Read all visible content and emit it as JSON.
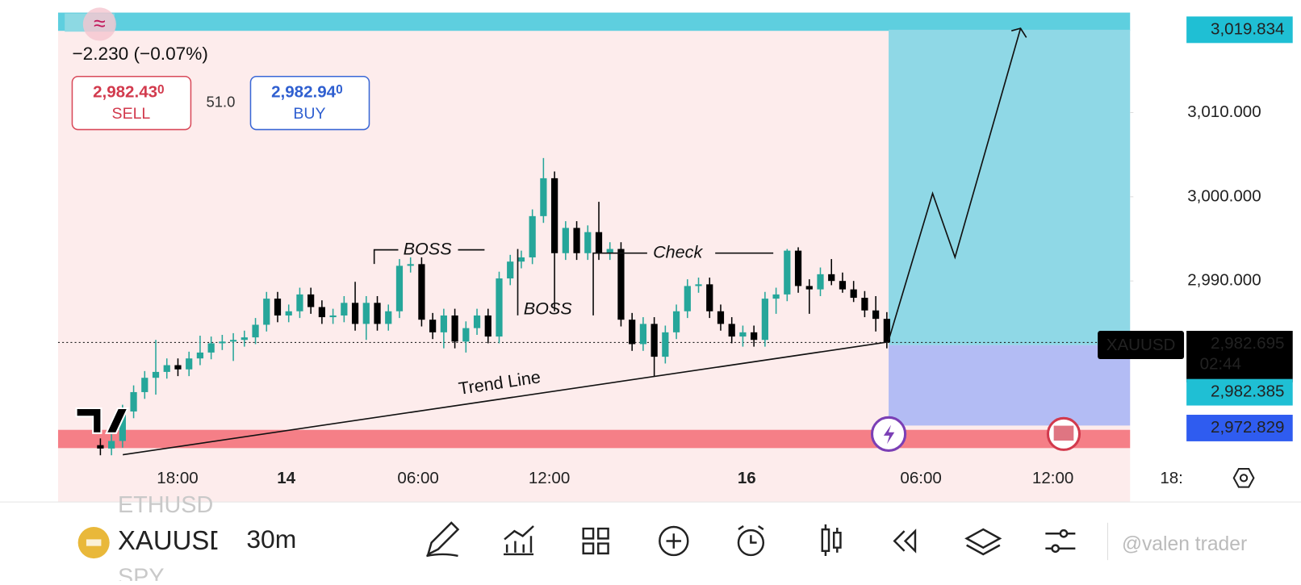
{
  "header": {
    "change": "−2.230 (−0.07%)",
    "sell_price": "2,982.43",
    "sell_pip": "0",
    "sell_label": "SELL",
    "spread": "51.0",
    "buy_price": "2,982.94",
    "buy_pip": "0",
    "buy_label": "BUY"
  },
  "chart_data": {
    "type": "candlestick",
    "symbol": "XAUUSD",
    "up_color": "#26a69a",
    "down_color": "#000000",
    "open": [
      2970.5,
      2970.1,
      2971.0,
      2974.5,
      2976.8,
      2978.5,
      2979.2,
      2980.0,
      2979.5,
      2980.8,
      2981.5,
      2982.6,
      2982.8,
      2983.0,
      2983.3,
      2984.8,
      2987.9,
      2985.9,
      2986.4,
      2988.4,
      2986.9,
      2985.7,
      2985.9,
      2987.4,
      2984.9,
      2987.4,
      2984.9,
      2986.4,
      2991.8,
      2992.0,
      2985.4,
      2983.9,
      2985.9,
      2982.8,
      2984.4,
      2985.9,
      2983.4,
      2990.3,
      2992.3,
      2992.8,
      2997.7,
      3002.2,
      2993.3,
      2996.3,
      2993.3,
      2995.8,
      2993.3,
      2993.8,
      2985.4,
      2982.5,
      2984.9,
      2981.0,
      2983.9,
      2986.4,
      2989.4,
      2989.6,
      2986.4,
      2984.9,
      2983.4,
      2983.9,
      2983.0,
      2987.9,
      2988.4,
      2993.6,
      2989.4,
      2989.0,
      2990.8,
      2990.0,
      2989.0,
      2988.0,
      2986.5,
      2985.5
    ],
    "high": [
      2971.3,
      2971.8,
      2975.3,
      2977.6,
      2979.3,
      2983.0,
      2980.8,
      2980.8,
      2981.6,
      2983.5,
      2983.4,
      2983.6,
      2983.8,
      2984.1,
      2985.6,
      2988.7,
      2988.7,
      2987.2,
      2989.2,
      2989.2,
      2987.7,
      2986.7,
      2988.2,
      2989.9,
      2988.2,
      2988.2,
      2987.2,
      2992.6,
      2992.8,
      2992.8,
      2986.2,
      2986.7,
      2986.7,
      2985.2,
      2986.7,
      2986.7,
      2991.1,
      2993.1,
      2993.6,
      2998.5,
      3004.6,
      3003.0,
      2997.1,
      2997.1,
      2996.6,
      2999.4,
      2994.6,
      2994.6,
      2986.2,
      2985.7,
      2985.7,
      2984.7,
      2987.2,
      2990.2,
      2990.4,
      2990.4,
      2987.2,
      2985.7,
      2984.7,
      2984.7,
      2988.7,
      2989.2,
      2993.8,
      2994.0,
      2990.2,
      2991.6,
      2992.6,
      2991.0,
      2990.0,
      2988.8,
      2988.2,
      2986.3
    ],
    "low": [
      2969.3,
      2969.3,
      2970.2,
      2973.7,
      2976.0,
      2976.5,
      2978.4,
      2978.7,
      2978.7,
      2980.0,
      2980.7,
      2981.8,
      2980.5,
      2982.2,
      2982.5,
      2984.0,
      2985.1,
      2985.1,
      2985.6,
      2986.1,
      2984.9,
      2984.9,
      2985.1,
      2984.1,
      2983.0,
      2984.1,
      2984.1,
      2985.6,
      2991.0,
      2984.6,
      2983.1,
      2982.0,
      2982.0,
      2981.5,
      2983.6,
      2982.6,
      2982.6,
      2989.5,
      2991.5,
      2992.0,
      2996.9,
      2986.4,
      2992.5,
      2992.5,
      2992.5,
      2992.5,
      2992.5,
      2984.6,
      2981.7,
      2981.7,
      2978.7,
      2980.2,
      2983.1,
      2985.6,
      2988.6,
      2985.6,
      2984.1,
      2982.6,
      2982.2,
      2982.2,
      2982.2,
      2986.1,
      2987.6,
      2988.6,
      2986.1,
      2988.2,
      2989.5,
      2988.6,
      2987.5,
      2985.7,
      2984.0,
      2982.0
    ],
    "close": [
      2970.1,
      2971.0,
      2974.5,
      2976.8,
      2978.5,
      2979.2,
      2980.0,
      2979.5,
      2980.8,
      2981.5,
      2982.6,
      2982.8,
      2983.0,
      2983.3,
      2984.8,
      2987.9,
      2985.9,
      2986.4,
      2988.4,
      2986.9,
      2985.7,
      2985.9,
      2987.4,
      2984.9,
      2987.4,
      2984.9,
      2986.4,
      2991.8,
      2992.0,
      2985.4,
      2983.9,
      2985.9,
      2982.8,
      2984.4,
      2985.9,
      2983.4,
      2990.3,
      2992.3,
      2992.8,
      2997.7,
      3002.2,
      2993.3,
      2996.3,
      2993.3,
      2995.8,
      2993.3,
      2993.8,
      2985.4,
      2982.5,
      2984.9,
      2981.0,
      2983.9,
      2986.4,
      2989.4,
      2989.6,
      2986.4,
      2984.9,
      2983.4,
      2983.9,
      2983.0,
      2987.9,
      2988.4,
      2993.6,
      2989.4,
      2989.0,
      2990.8,
      2990.0,
      2989.0,
      2988.0,
      2986.5,
      2985.5,
      2982.7
    ],
    "ylim": [
      2964.24,
      3023.35
    ],
    "yticks": [
      {
        "value": 3010,
        "label": "3,010.000"
      },
      {
        "value": 3000,
        "label": "3,000.000"
      },
      {
        "value": 2990,
        "label": "2,990.000"
      }
    ],
    "xlabels": [
      "18:00",
      "14",
      "06:00",
      "12:00",
      "16",
      "06:00",
      "12:00",
      "18:"
    ],
    "last_price": {
      "value": 2982.695,
      "label": "2,982.695"
    },
    "countdown": "02:44",
    "position": {
      "target": {
        "value": 3019.834,
        "label": "3,019.834"
      },
      "entry": {
        "value": 2982.385,
        "label": "2,982.385"
      },
      "stop": {
        "value": 2972.829,
        "label": "2,972.829"
      }
    },
    "annotations": [
      "BOSS",
      "BOSS",
      "Check",
      "Trend Line"
    ]
  },
  "toolbar": {
    "symbols": [
      "ETHUSD",
      "XAUUSD",
      "SPY"
    ],
    "interval": "30m",
    "watermark": "@valen trader"
  }
}
